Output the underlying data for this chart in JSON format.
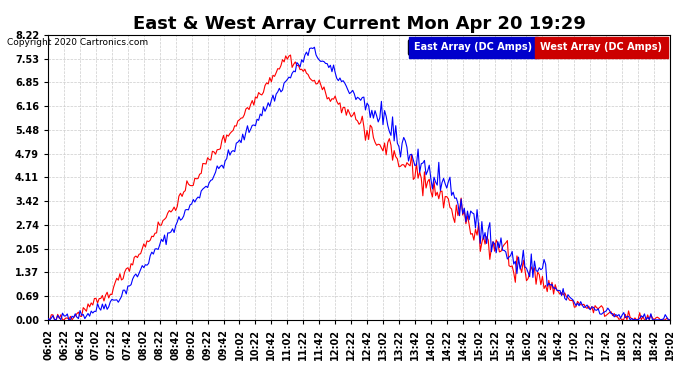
{
  "title": "East & West Array Current Mon Apr 20 19:29",
  "copyright": "Copyright 2020 Cartronics.com",
  "legend_east": "East Array (DC Amps)",
  "legend_west": "West Array (DC Amps)",
  "east_color": "#0000ff",
  "west_color": "#ff0000",
  "legend_east_bg": "#0000cc",
  "legend_west_bg": "#cc0000",
  "yticks": [
    0.0,
    0.69,
    1.37,
    2.05,
    2.74,
    3.42,
    4.11,
    4.79,
    5.48,
    6.16,
    6.85,
    7.53,
    8.22
  ],
  "ylim": [
    0.0,
    8.22
  ],
  "background_color": "#ffffff",
  "plot_bg_color": "#ffffff",
  "grid_color": "#cccccc",
  "title_fontsize": 13,
  "tick_fontsize": 7,
  "x_start_hour": 6,
  "x_start_min": 2,
  "x_end_hour": 19,
  "x_end_min": 2,
  "x_tick_interval_min": 20
}
